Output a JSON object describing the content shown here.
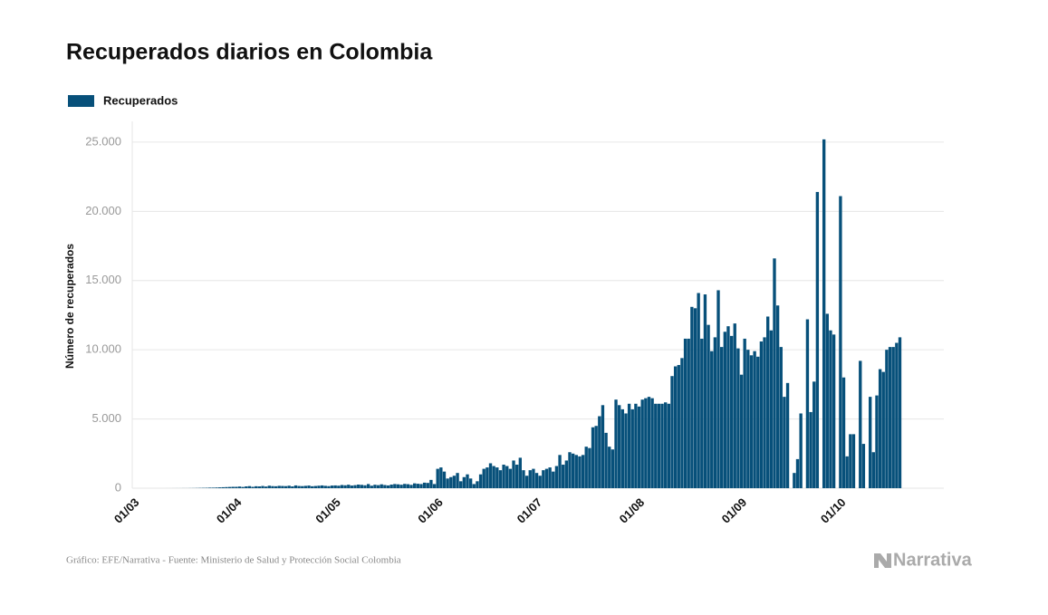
{
  "chart_data": {
    "type": "bar",
    "title": "Recuperados diarios en Colombia",
    "y_label": "Número de recuperados",
    "source": "Gráfico: EFE/Narrativa - Fuente: Ministerio de Salud y Protección Social Colombia",
    "logo": "Narrativa",
    "grid": true,
    "legend_position": "top-left",
    "series": [
      {
        "name": "Recuperados",
        "color": "#07507a",
        "values": [
          0,
          0,
          0,
          0,
          0,
          0,
          0,
          0,
          0,
          0,
          1,
          1,
          2,
          3,
          3,
          5,
          5,
          8,
          10,
          15,
          20,
          25,
          30,
          40,
          40,
          50,
          60,
          70,
          80,
          90,
          100,
          100,
          120,
          90,
          130,
          150,
          100,
          140,
          130,
          160,
          120,
          180,
          150,
          140,
          170,
          160,
          150,
          180,
          130,
          200,
          160,
          150,
          170,
          190,
          140,
          160,
          180,
          200,
          170,
          150,
          190,
          200,
          180,
          230,
          210,
          250,
          190,
          220,
          260,
          240,
          210,
          300,
          180,
          250,
          220,
          280,
          230,
          200,
          260,
          300,
          280,
          250,
          310,
          290,
          240,
          350,
          320,
          300,
          400,
          380,
          600,
          300,
          1400,
          1500,
          1200,
          700,
          800,
          900,
          1100,
          500,
          800,
          1000,
          700,
          300,
          500,
          1000,
          1400,
          1500,
          1800,
          1600,
          1500,
          1300,
          1700,
          1600,
          1400,
          2000,
          1700,
          2200,
          1300,
          900,
          1300,
          1400,
          1100,
          900,
          1300,
          1400,
          1500,
          1200,
          1600,
          2400,
          1700,
          2000,
          2600,
          2500,
          2400,
          2300,
          2400,
          3000,
          2900,
          4400,
          4500,
          5200,
          6000,
          4000,
          3000,
          2800,
          6400,
          6000,
          5700,
          5400,
          6100,
          5700,
          6100,
          5900,
          6400,
          6500,
          6600,
          6500,
          6100,
          6100,
          6100,
          6200,
          6100,
          8100,
          8800,
          8900,
          9400,
          10800,
          10800,
          13100,
          13000,
          14100,
          10800,
          14000,
          11800,
          9900,
          10900,
          14300,
          10200,
          11300,
          11700,
          11000,
          11900,
          10100,
          8200,
          10800,
          10000,
          9600,
          9900,
          9500,
          10600,
          10900,
          12400,
          11400,
          16600,
          13200,
          10200,
          6600,
          7600,
          0,
          1100,
          2100,
          5400,
          0,
          12200,
          5500,
          7700,
          21400,
          0,
          25200,
          12600,
          11400,
          11100,
          0,
          21100,
          8000,
          2300,
          3900,
          3900,
          0,
          9200,
          3200,
          0,
          6600,
          2600,
          6700,
          8600,
          8400,
          10000,
          10200,
          10200,
          10500,
          10900
        ]
      }
    ],
    "categories": [
      "01/03",
      null,
      null,
      null,
      null,
      null,
      null,
      null,
      null,
      null,
      null,
      null,
      null,
      null,
      null,
      null,
      null,
      null,
      null,
      null,
      null,
      null,
      null,
      null,
      null,
      null,
      null,
      null,
      null,
      null,
      null,
      "01/04",
      null,
      null,
      null,
      null,
      null,
      null,
      null,
      null,
      null,
      null,
      null,
      null,
      null,
      null,
      null,
      null,
      null,
      null,
      null,
      null,
      null,
      null,
      null,
      null,
      null,
      null,
      null,
      null,
      null,
      "01/05",
      null,
      null,
      null,
      null,
      null,
      null,
      null,
      null,
      null,
      null,
      null,
      null,
      null,
      null,
      null,
      null,
      null,
      null,
      null,
      null,
      null,
      null,
      null,
      null,
      null,
      null,
      null,
      null,
      null,
      null,
      "01/06",
      null,
      null,
      null,
      null,
      null,
      null,
      null,
      null,
      null,
      null,
      null,
      null,
      null,
      null,
      null,
      null,
      null,
      null,
      null,
      null,
      null,
      null,
      null,
      null,
      null,
      null,
      null,
      null,
      null,
      "01/07",
      null,
      null,
      null,
      null,
      null,
      null,
      null,
      null,
      null,
      null,
      null,
      null,
      null,
      null,
      null,
      null,
      null,
      null,
      null,
      null,
      null,
      null,
      null,
      null,
      null,
      null,
      null,
      null,
      null,
      null,
      "01/08",
      null,
      null,
      null,
      null,
      null,
      null,
      null,
      null,
      null,
      null,
      null,
      null,
      null,
      null,
      null,
      null,
      null,
      null,
      null,
      null,
      null,
      null,
      null,
      null,
      null,
      null,
      null,
      null,
      null,
      null,
      "01/09",
      null,
      null,
      null,
      null,
      null,
      null,
      null,
      null,
      null,
      null,
      null,
      null,
      null,
      null,
      null,
      null,
      null,
      null,
      null,
      null,
      null,
      null,
      null,
      null,
      null,
      null,
      null,
      null,
      null,
      "01/10",
      null,
      null,
      null,
      null,
      null,
      null,
      null,
      null,
      null,
      null,
      null,
      null,
      null,
      null,
      null,
      null,
      null,
      null
    ],
    "ylim": [
      0,
      26500
    ],
    "yticks": [
      0,
      {
        "value": 5000,
        "label": "5.000"
      },
      {
        "value": 10000,
        "label": "10.000"
      },
      {
        "value": 15000,
        "label": "15.000"
      },
      {
        "value": 20000,
        "label": "20.000"
      },
      {
        "value": 25000,
        "label": "25.000"
      }
    ]
  }
}
